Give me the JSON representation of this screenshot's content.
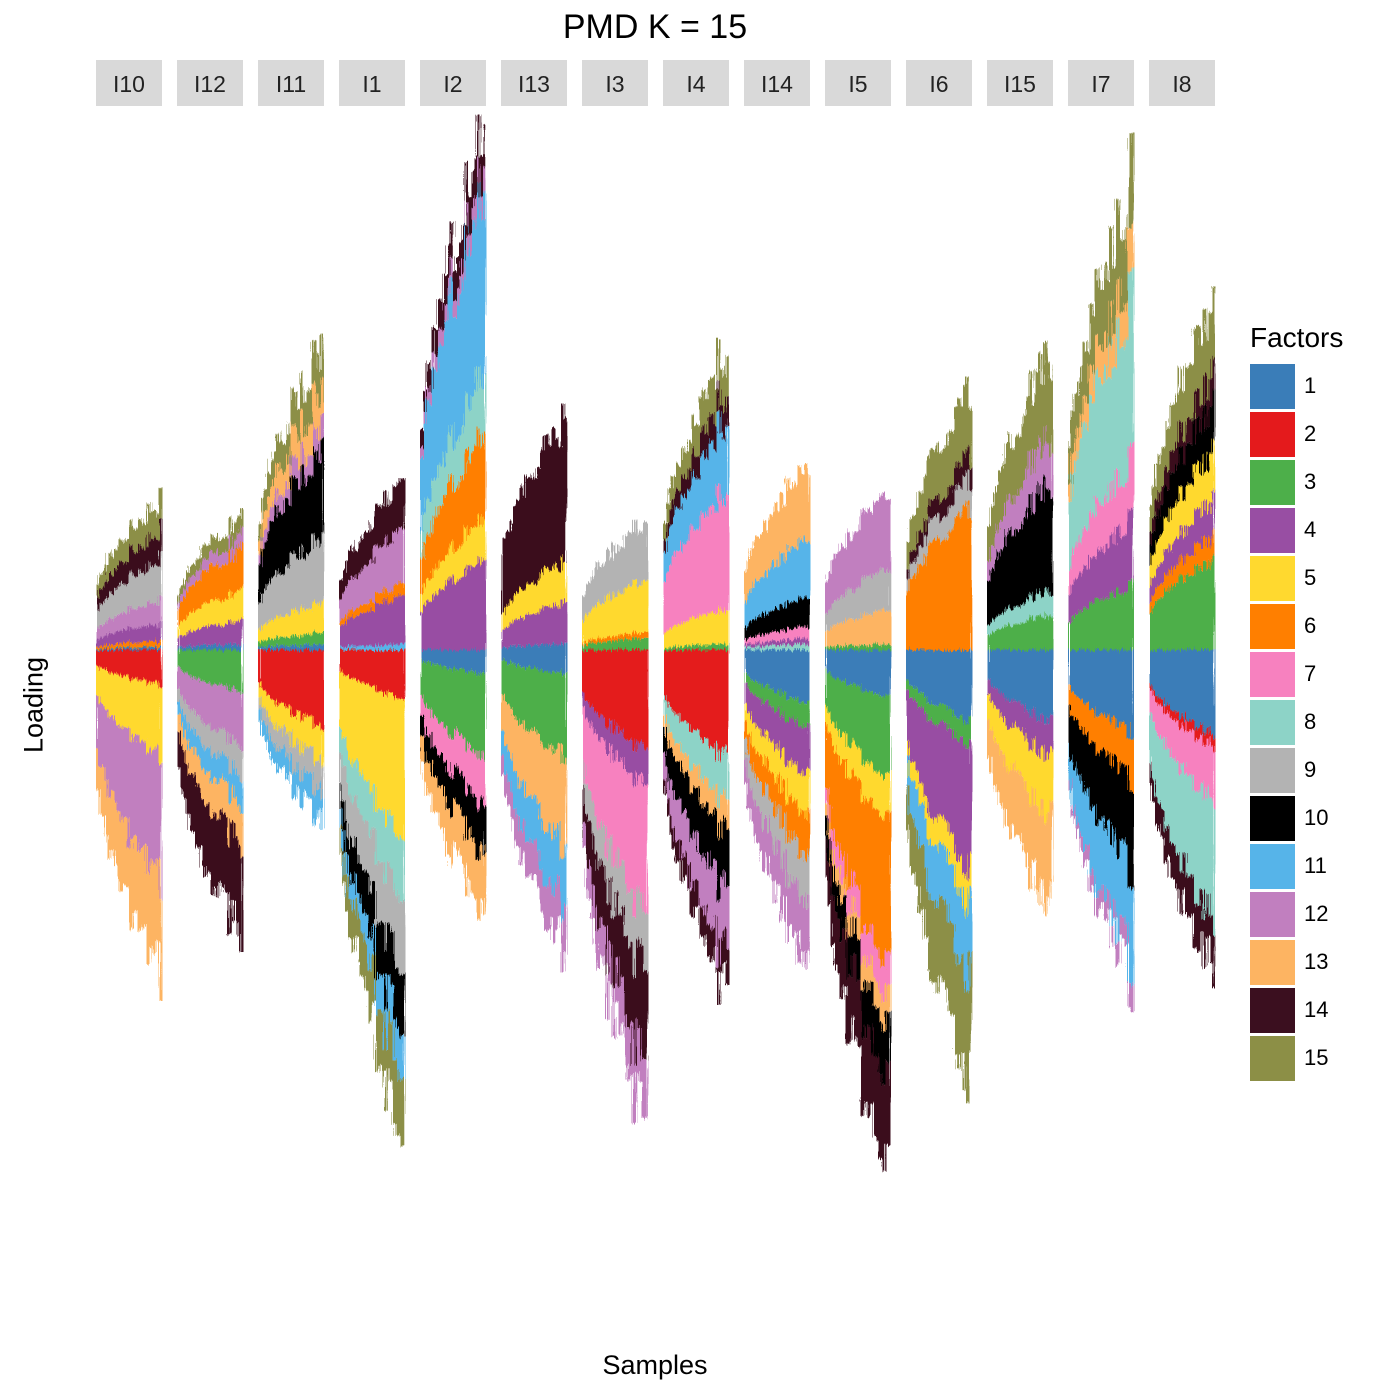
{
  "chart_data": {
    "type": "bar",
    "subtype": "stacked bar, positive and negative loadings, faceted by group",
    "title": "PMD K = 15",
    "xlabel": "Samples",
    "ylabel": "Loading",
    "grid": false,
    "legend": {
      "title": "Factors",
      "position": "right"
    },
    "facets": [
      "I10",
      "I12",
      "I11",
      "I1",
      "I2",
      "I13",
      "I3",
      "I4",
      "I14",
      "I5",
      "I6",
      "I15",
      "I7",
      "I8"
    ],
    "factors": [
      {
        "name": "1",
        "color": "#3A7DB8"
      },
      {
        "name": "2",
        "color": "#E41A1C"
      },
      {
        "name": "3",
        "color": "#4DAF4A"
      },
      {
        "name": "4",
        "color": "#984EA3"
      },
      {
        "name": "5",
        "color": "#FFD92F"
      },
      {
        "name": "6",
        "color": "#FF7F00"
      },
      {
        "name": "7",
        "color": "#F781BF"
      },
      {
        "name": "8",
        "color": "#8DD3C7"
      },
      {
        "name": "9",
        "color": "#B3B3B3"
      },
      {
        "name": "10",
        "color": "#000000"
      },
      {
        "name": "11",
        "color": "#56B4E9"
      },
      {
        "name": "12",
        "color": "#C17FBF"
      },
      {
        "name": "13",
        "color": "#FDB462"
      },
      {
        "name": "14",
        "color": "#3B0F1F"
      },
      {
        "name": "15",
        "color": "#8C8F46"
      }
    ],
    "groups": [
      {
        "facet": "I10",
        "pos": [
          [
            "15",
            0.1
          ],
          [
            "14",
            0.1
          ],
          [
            "9",
            0.14
          ],
          [
            "12",
            0.08
          ],
          [
            "4",
            0.06
          ],
          [
            "6",
            0.02
          ],
          [
            "1",
            0.01
          ]
        ],
        "neg": [
          [
            "2",
            0.12
          ],
          [
            "5",
            0.24
          ],
          [
            "12",
            0.42
          ],
          [
            "13",
            0.32
          ]
        ]
      },
      {
        "facet": "I12",
        "pos": [
          [
            "15",
            0.06
          ],
          [
            "12",
            0.05
          ],
          [
            "6",
            0.14
          ],
          [
            "5",
            0.1
          ],
          [
            "4",
            0.08
          ],
          [
            "1",
            0.02
          ]
        ],
        "neg": [
          [
            "3",
            0.14
          ],
          [
            "12",
            0.18
          ],
          [
            "9",
            0.1
          ],
          [
            "11",
            0.1
          ],
          [
            "13",
            0.14
          ],
          [
            "14",
            0.3
          ]
        ]
      },
      {
        "facet": "I11",
        "pos": [
          [
            "15",
            0.14
          ],
          [
            "13",
            0.12
          ],
          [
            "12",
            0.08
          ],
          [
            "10",
            0.3
          ],
          [
            "9",
            0.22
          ],
          [
            "5",
            0.1
          ],
          [
            "3",
            0.04
          ],
          [
            "1",
            0.02
          ]
        ],
        "neg": [
          [
            "2",
            0.26
          ],
          [
            "5",
            0.12
          ],
          [
            "9",
            0.1
          ],
          [
            "11",
            0.1
          ]
        ]
      },
      {
        "facet": "I1",
        "pos": [
          [
            "14",
            0.16
          ],
          [
            "12",
            0.18
          ],
          [
            "6",
            0.04
          ],
          [
            "4",
            0.16
          ],
          [
            "11",
            0.02
          ]
        ],
        "neg": [
          [
            "2",
            0.16
          ],
          [
            "5",
            0.46
          ],
          [
            "8",
            0.2
          ],
          [
            "9",
            0.24
          ],
          [
            "10",
            0.2
          ],
          [
            "11",
            0.14
          ],
          [
            "15",
            0.22
          ]
        ]
      },
      {
        "facet": "I2",
        "pos": [
          [
            "14",
            0.14
          ],
          [
            "12",
            0.08
          ],
          [
            "11",
            0.6
          ],
          [
            "8",
            0.2
          ],
          [
            "6",
            0.28
          ],
          [
            "5",
            0.14
          ],
          [
            "4",
            0.3
          ]
        ],
        "neg": [
          [
            "1",
            0.08
          ],
          [
            "3",
            0.28
          ],
          [
            "7",
            0.16
          ],
          [
            "10",
            0.16
          ],
          [
            "13",
            0.2
          ]
        ]
      },
      {
        "facet": "I13",
        "pos": [
          [
            "14",
            0.48
          ],
          [
            "5",
            0.14
          ],
          [
            "4",
            0.14
          ],
          [
            "1",
            0.02
          ]
        ],
        "neg": [
          [
            "1",
            0.08
          ],
          [
            "3",
            0.28
          ],
          [
            "13",
            0.3
          ],
          [
            "11",
            0.2
          ],
          [
            "12",
            0.16
          ]
        ]
      },
      {
        "facet": "I3",
        "pos": [
          [
            "9",
            0.2
          ],
          [
            "5",
            0.18
          ],
          [
            "6",
            0.02
          ],
          [
            "3",
            0.04
          ]
        ],
        "neg": [
          [
            "2",
            0.34
          ],
          [
            "4",
            0.12
          ],
          [
            "7",
            0.44
          ],
          [
            "9",
            0.2
          ],
          [
            "14",
            0.3
          ],
          [
            "12",
            0.2
          ]
        ]
      },
      {
        "facet": "I4",
        "pos": [
          [
            "15",
            0.14
          ],
          [
            "14",
            0.1
          ],
          [
            "11",
            0.24
          ],
          [
            "7",
            0.4
          ],
          [
            "5",
            0.12
          ],
          [
            "3",
            0.02
          ]
        ],
        "neg": [
          [
            "2",
            0.36
          ],
          [
            "8",
            0.16
          ],
          [
            "13",
            0.1
          ],
          [
            "10",
            0.2
          ],
          [
            "12",
            0.22
          ],
          [
            "14",
            0.12
          ]
        ]
      },
      {
        "facet": "I14",
        "pos": [
          [
            "13",
            0.24
          ],
          [
            "11",
            0.2
          ],
          [
            "10",
            0.1
          ],
          [
            "7",
            0.04
          ],
          [
            "4",
            0.02
          ],
          [
            "8",
            0.02
          ]
        ],
        "neg": [
          [
            "1",
            0.18
          ],
          [
            "3",
            0.08
          ],
          [
            "4",
            0.16
          ],
          [
            "5",
            0.14
          ],
          [
            "6",
            0.14
          ],
          [
            "9",
            0.16
          ],
          [
            "12",
            0.2
          ]
        ]
      },
      {
        "facet": "I5",
        "pos": [
          [
            "12",
            0.26
          ],
          [
            "9",
            0.14
          ],
          [
            "13",
            0.12
          ],
          [
            "3",
            0.02
          ]
        ],
        "neg": [
          [
            "1",
            0.16
          ],
          [
            "3",
            0.28
          ],
          [
            "5",
            0.14
          ],
          [
            "6",
            0.5
          ],
          [
            "7",
            0.12
          ],
          [
            "13",
            0.1
          ],
          [
            "10",
            0.18
          ],
          [
            "14",
            0.3
          ]
        ]
      },
      {
        "facet": "I6",
        "pos": [
          [
            "15",
            0.22
          ],
          [
            "14",
            0.08
          ],
          [
            "9",
            0.1
          ],
          [
            "6",
            0.48
          ]
        ],
        "neg": [
          [
            "1",
            0.24
          ],
          [
            "3",
            0.08
          ],
          [
            "4",
            0.42
          ],
          [
            "5",
            0.12
          ],
          [
            "11",
            0.24
          ],
          [
            "15",
            0.36
          ]
        ]
      },
      {
        "facet": "I15",
        "pos": [
          [
            "15",
            0.28
          ],
          [
            "12",
            0.16
          ],
          [
            "10",
            0.36
          ],
          [
            "8",
            0.08
          ],
          [
            "3",
            0.12
          ]
        ],
        "neg": [
          [
            "1",
            0.24
          ],
          [
            "4",
            0.12
          ],
          [
            "5",
            0.2
          ],
          [
            "13",
            0.3
          ]
        ]
      },
      {
        "facet": "I7",
        "pos": [
          [
            "15",
            0.28
          ],
          [
            "13",
            0.14
          ],
          [
            "8",
            0.54
          ],
          [
            "7",
            0.2
          ],
          [
            "4",
            0.22
          ],
          [
            "3",
            0.22
          ]
        ],
        "neg": [
          [
            "1",
            0.28
          ],
          [
            "6",
            0.16
          ],
          [
            "10",
            0.3
          ],
          [
            "11",
            0.3
          ],
          [
            "12",
            0.08
          ]
        ]
      },
      {
        "facet": "I8",
        "pos": [
          [
            "15",
            0.22
          ],
          [
            "14",
            0.1
          ],
          [
            "10",
            0.16
          ],
          [
            "5",
            0.16
          ],
          [
            "4",
            0.12
          ],
          [
            "6",
            0.08
          ],
          [
            "3",
            0.3
          ]
        ],
        "neg": [
          [
            "1",
            0.28
          ],
          [
            "2",
            0.04
          ],
          [
            "7",
            0.18
          ],
          [
            "8",
            0.4
          ],
          [
            "14",
            0.16
          ]
        ]
      }
    ]
  }
}
